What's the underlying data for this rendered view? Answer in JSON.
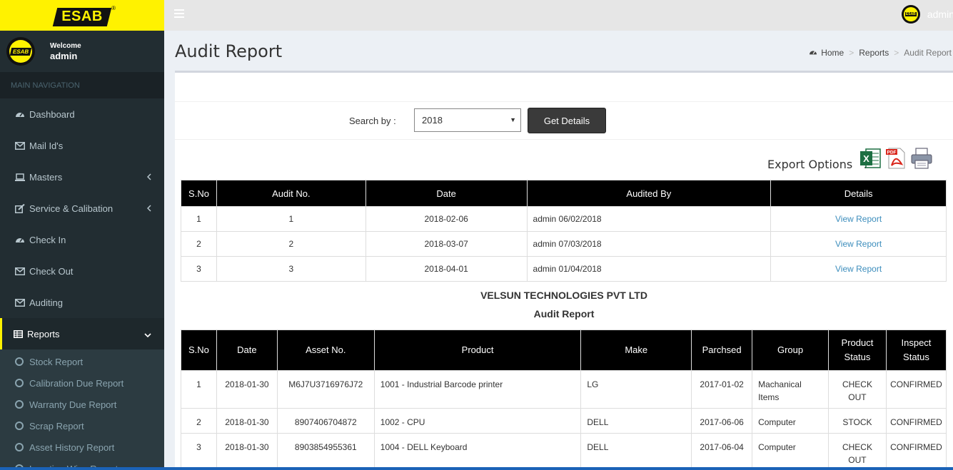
{
  "brand": {
    "logo_text": "ESAB",
    "reg_mark": "®",
    "avatar_text": "ESAB"
  },
  "user_panel": {
    "welcome": "Welcome",
    "name": "admin"
  },
  "topbar": {
    "username": "admin"
  },
  "nav": {
    "header": "MAIN NAVIGATION",
    "items": [
      {
        "label": "Dashboard",
        "icon": "dashboard-icon"
      },
      {
        "label": "Mail Id's",
        "icon": "envelope-icon"
      },
      {
        "label": "Masters",
        "icon": "laptop-icon"
      },
      {
        "label": "Service & Calibation",
        "icon": "edit-icon"
      },
      {
        "label": "Check In",
        "icon": "dashboard-icon"
      },
      {
        "label": "Check Out",
        "icon": "envelope-icon"
      },
      {
        "label": "Auditing",
        "icon": "envelope-icon"
      },
      {
        "label": "Reports",
        "icon": "table-icon"
      }
    ],
    "sub_items": [
      {
        "label": "Stock Report"
      },
      {
        "label": "Calibration Due Report"
      },
      {
        "label": "Warranty Due Report"
      },
      {
        "label": "Scrap Report"
      },
      {
        "label": "Asset History Report"
      },
      {
        "label": "Location Wise Report"
      }
    ]
  },
  "page": {
    "title": "Audit Report",
    "breadcrumb": [
      "Home",
      "Reports",
      "Audit Report"
    ]
  },
  "search": {
    "label": "Search by :",
    "selected": "2018",
    "button": "Get Details"
  },
  "export": {
    "label": "Export Options",
    "colon": ":",
    "icons": [
      "excel-icon",
      "pdf-icon",
      "printer-icon"
    ],
    "pdf_badge": "PDF"
  },
  "audit_table": {
    "headers": [
      "S.No",
      "Audit No.",
      "Date",
      "Audited By",
      "Details"
    ],
    "rows": [
      {
        "sno": "1",
        "audit_no": "1",
        "date": "2018-02-06",
        "audited_by": "admin 06/02/2018",
        "details": "View Report"
      },
      {
        "sno": "2",
        "audit_no": "2",
        "date": "2018-03-07",
        "audited_by": "admin 07/03/2018",
        "details": "View Report"
      },
      {
        "sno": "3",
        "audit_no": "3",
        "date": "2018-04-01",
        "audited_by": "admin 01/04/2018",
        "details": "View Report"
      }
    ]
  },
  "report": {
    "company": "VELSUN TECHNOLOGIES PVT LTD",
    "title": "Audit Report",
    "headers": [
      "S.No",
      "Date",
      "Asset No.",
      "Product",
      "Make",
      "Parchsed",
      "Group",
      "Product Status",
      "Inspect Status"
    ],
    "header_lines": {
      "product_status": [
        "Product",
        "Status"
      ],
      "inspect_status": [
        "Inspect",
        "Status"
      ]
    },
    "rows": [
      {
        "sno": "1",
        "date": "2018-01-30",
        "asset_no": "M6J7U3716976J72",
        "product": "1001 - Industrial Barcode printer",
        "make": "LG",
        "purchased": "2017-01-02",
        "group": [
          "Machanical",
          "Items"
        ],
        "product_status": [
          "CHECK",
          "OUT"
        ],
        "inspect_status": "CONFIRMED"
      },
      {
        "sno": "2",
        "date": "2018-01-30",
        "asset_no": "8907406704872",
        "product": "1002 - CPU",
        "make": "DELL",
        "purchased": "2017-06-06",
        "group": [
          "Computer"
        ],
        "product_status": [
          "STOCK"
        ],
        "inspect_status": "CONFIRMED"
      },
      {
        "sno": "3",
        "date": "2018-01-30",
        "asset_no": "8903854955361",
        "product": "1004 - DELL Keyboard",
        "make": "DELL",
        "purchased": "2017-06-04",
        "group": [
          "Computer"
        ],
        "product_status": [
          "CHECK",
          "OUT"
        ],
        "inspect_status": "CONFIRMED"
      }
    ]
  },
  "colors": {
    "brand_yellow": "#fff200",
    "sidebar_bg": "#222d32",
    "link": "#3c8dbc",
    "header_bg": "#000000"
  }
}
